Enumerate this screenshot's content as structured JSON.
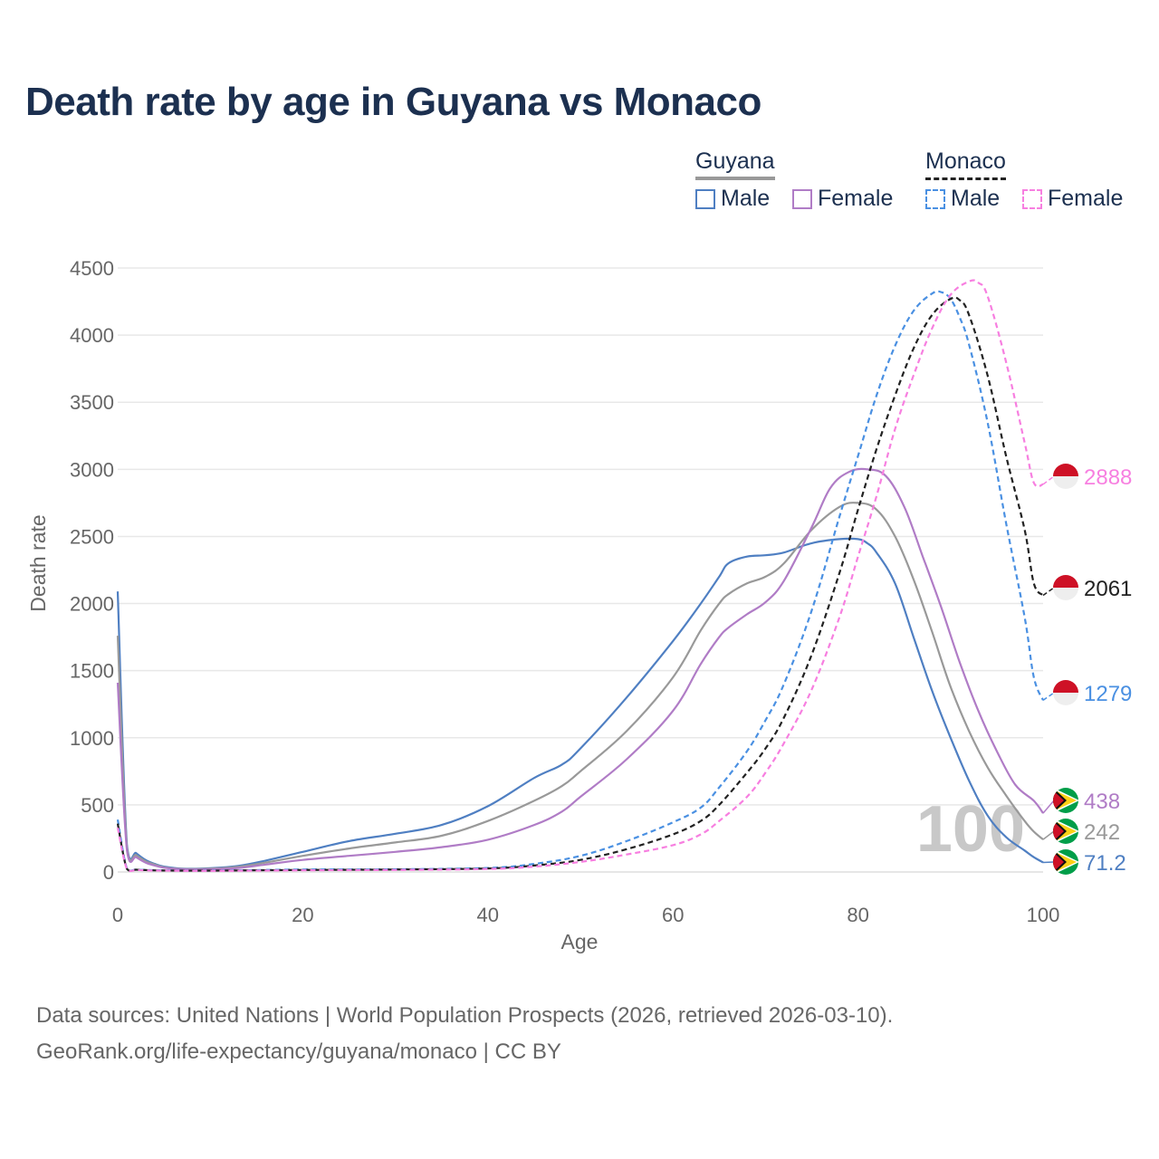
{
  "title": "Death rate by age in Guyana vs Monaco",
  "legend": {
    "groups": [
      {
        "name": "Guyana",
        "line_style": "solid",
        "color": "#999999",
        "items": [
          {
            "label": "Male",
            "color": "#4f7fc2",
            "style": "solid"
          },
          {
            "label": "Female",
            "color": "#b07cc6",
            "style": "solid"
          }
        ]
      },
      {
        "name": "Monaco",
        "line_style": "dashed",
        "color": "#222222",
        "items": [
          {
            "label": "Male",
            "color": "#4a90e2",
            "style": "dashed"
          },
          {
            "label": "Female",
            "color": "#f77fe0",
            "style": "dashed"
          }
        ]
      }
    ]
  },
  "watermark": "100",
  "source": {
    "line1": "Data sources: United Nations | World Population Prospects (2026, retrieved 2026-03-10).",
    "line2": "GeoRank.org/life-expectancy/guyana/monaco | CC BY"
  },
  "chart_data": {
    "type": "line",
    "title": "Death rate by age in Guyana vs Monaco",
    "xlabel": "Age",
    "ylabel": "Death rate",
    "xlim": [
      0,
      100
    ],
    "ylim": [
      0,
      4500
    ],
    "xticks": [
      0,
      20,
      40,
      60,
      80,
      100
    ],
    "yticks": [
      0,
      500,
      1000,
      1500,
      2000,
      2500,
      3000,
      3500,
      4000,
      4500
    ],
    "grid": true,
    "series": [
      {
        "name": "Guyana Male",
        "color": "#4f7fc2",
        "dash": false,
        "end_label": "71.2",
        "end_flag": "guyana",
        "x": [
          0,
          1,
          2,
          3,
          4,
          5,
          7,
          10,
          13,
          16,
          20,
          25,
          30,
          35,
          40,
          45,
          48,
          50,
          55,
          60,
          63,
          65,
          66,
          68,
          70,
          72,
          75,
          78,
          80,
          81,
          82,
          84,
          86,
          88,
          90,
          92,
          94,
          96,
          98,
          99,
          100
        ],
        "y": [
          2090,
          200,
          140,
          90,
          60,
          40,
          25,
          28,
          45,
          85,
          150,
          230,
          285,
          350,
          490,
          700,
          800,
          920,
          1300,
          1720,
          2000,
          2200,
          2300,
          2350,
          2360,
          2380,
          2450,
          2480,
          2480,
          2450,
          2380,
          2150,
          1750,
          1350,
          1000,
          680,
          420,
          260,
          160,
          110,
          71
        ]
      },
      {
        "name": "Guyana Total",
        "color": "#999999",
        "dash": false,
        "end_label": "242",
        "end_flag": "guyana",
        "x": [
          0,
          1,
          2,
          3,
          4,
          5,
          7,
          10,
          13,
          16,
          20,
          25,
          30,
          35,
          40,
          45,
          48,
          50,
          55,
          60,
          63,
          65,
          66,
          68,
          70,
          72,
          75,
          78,
          80,
          82,
          84,
          86,
          88,
          90,
          92,
          94,
          96,
          98,
          99,
          100
        ],
        "y": [
          1760,
          180,
          125,
          80,
          55,
          35,
          22,
          24,
          38,
          70,
          120,
          175,
          220,
          270,
          380,
          530,
          640,
          750,
          1050,
          1450,
          1800,
          2000,
          2070,
          2150,
          2200,
          2300,
          2550,
          2720,
          2750,
          2700,
          2500,
          2180,
          1790,
          1380,
          1050,
          780,
          570,
          380,
          300,
          242
        ]
      },
      {
        "name": "Guyana Female",
        "color": "#b07cc6",
        "dash": false,
        "end_label": "438",
        "end_flag": "guyana",
        "x": [
          0,
          1,
          2,
          3,
          4,
          5,
          7,
          10,
          13,
          16,
          20,
          25,
          30,
          35,
          40,
          45,
          48,
          50,
          55,
          60,
          63,
          65,
          66,
          68,
          70,
          72,
          75,
          77,
          79,
          81,
          83,
          85,
          87,
          89,
          91,
          93,
          95,
          97,
          99,
          100
        ],
        "y": [
          1410,
          160,
          110,
          70,
          48,
          32,
          20,
          20,
          30,
          55,
          90,
          120,
          150,
          185,
          240,
          350,
          450,
          560,
          840,
          1200,
          1550,
          1750,
          1820,
          1920,
          2010,
          2170,
          2570,
          2860,
          2980,
          3000,
          2950,
          2720,
          2350,
          1970,
          1560,
          1200,
          900,
          650,
          530,
          438
        ]
      },
      {
        "name": "Monaco Male",
        "color": "#4a90e2",
        "dash": true,
        "end_label": "1279",
        "end_flag": "monaco",
        "x": [
          0,
          1,
          2,
          3,
          5,
          10,
          20,
          30,
          40,
          45,
          50,
          55,
          60,
          63,
          65,
          68,
          70,
          72,
          75,
          78,
          80,
          82,
          84,
          86,
          88,
          89,
          90,
          91,
          92,
          94,
          96,
          98,
          99,
          100
        ],
        "y": [
          390,
          25,
          18,
          15,
          12,
          10,
          18,
          20,
          30,
          60,
          120,
          230,
          370,
          480,
          630,
          900,
          1130,
          1400,
          1950,
          2650,
          3100,
          3550,
          3920,
          4180,
          4310,
          4320,
          4270,
          4130,
          3930,
          3350,
          2600,
          1900,
          1450,
          1279
        ]
      },
      {
        "name": "Monaco Total",
        "color": "#222222",
        "dash": true,
        "end_label": "2061",
        "end_flag": "monaco",
        "x": [
          0,
          1,
          2,
          3,
          5,
          10,
          20,
          30,
          40,
          45,
          50,
          55,
          60,
          63,
          65,
          68,
          70,
          72,
          75,
          78,
          80,
          82,
          84,
          86,
          88,
          90,
          91,
          92,
          94,
          96,
          98,
          99,
          100
        ],
        "y": [
          360,
          22,
          17,
          14,
          11,
          10,
          15,
          18,
          26,
          48,
          90,
          170,
          280,
          380,
          500,
          740,
          920,
          1150,
          1620,
          2230,
          2700,
          3150,
          3550,
          3900,
          4150,
          4270,
          4260,
          4150,
          3700,
          3100,
          2550,
          2150,
          2061
        ]
      },
      {
        "name": "Monaco Female",
        "color": "#f77fe0",
        "dash": true,
        "end_label": "2888",
        "end_flag": "monaco",
        "x": [
          0,
          1,
          2,
          3,
          5,
          10,
          20,
          30,
          40,
          45,
          50,
          55,
          60,
          63,
          65,
          68,
          70,
          72,
          75,
          78,
          80,
          82,
          84,
          86,
          88,
          90,
          92,
          93,
          94,
          96,
          98,
          99,
          100
        ],
        "y": [
          330,
          20,
          15,
          12,
          10,
          8,
          12,
          15,
          22,
          40,
          75,
          130,
          200,
          280,
          380,
          560,
          740,
          960,
          1360,
          1900,
          2350,
          2800,
          3300,
          3700,
          4050,
          4300,
          4400,
          4390,
          4290,
          3800,
          3200,
          2900,
          2888
        ]
      }
    ]
  }
}
